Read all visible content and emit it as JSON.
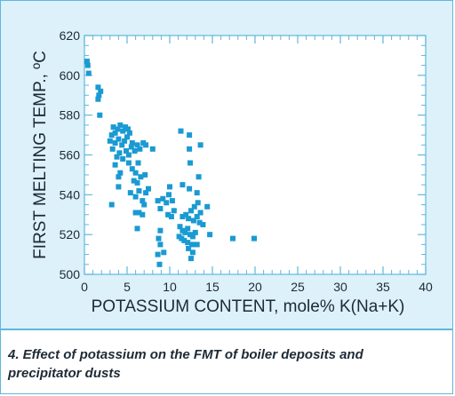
{
  "chart_data": {
    "type": "scatter",
    "title": "",
    "xlabel": "POTASSIUM CONTENT, mole% K(Na+K)",
    "ylabel": "FIRST MELTING TEMP., ºC",
    "xlim": [
      0,
      40
    ],
    "ylim": [
      500,
      620
    ],
    "x_ticks": [
      0,
      5,
      10,
      15,
      20,
      25,
      30,
      35,
      40
    ],
    "y_ticks": [
      500,
      520,
      540,
      560,
      580,
      600,
      620
    ],
    "grid": false,
    "marker_color": "#1a9ad2",
    "series": [
      {
        "points": [
          [
            0.3,
            607
          ],
          [
            0.4,
            605
          ],
          [
            0.5,
            601
          ],
          [
            1.6,
            594
          ],
          [
            1.7,
            590
          ],
          [
            1.9,
            592
          ],
          [
            1.6,
            588
          ],
          [
            1.8,
            580
          ],
          [
            3.0,
            567
          ],
          [
            3.2,
            570
          ],
          [
            3.4,
            574
          ],
          [
            3.6,
            571
          ],
          [
            3.9,
            573
          ],
          [
            4.2,
            575
          ],
          [
            4.5,
            572
          ],
          [
            4.8,
            574
          ],
          [
            5.1,
            573
          ],
          [
            3.3,
            563
          ],
          [
            3.6,
            566
          ],
          [
            4.0,
            568
          ],
          [
            4.4,
            565
          ],
          [
            4.7,
            567
          ],
          [
            5.0,
            569
          ],
          [
            5.3,
            571
          ],
          [
            5.6,
            566
          ],
          [
            3.8,
            559
          ],
          [
            4.1,
            561
          ],
          [
            4.5,
            558
          ],
          [
            4.9,
            562
          ],
          [
            5.2,
            560
          ],
          [
            5.5,
            564
          ],
          [
            5.9,
            562
          ],
          [
            6.2,
            565
          ],
          [
            6.5,
            563
          ],
          [
            6.9,
            566
          ],
          [
            7.2,
            565
          ],
          [
            8.0,
            563
          ],
          [
            3.6,
            555
          ],
          [
            4.0,
            549
          ],
          [
            4.2,
            551
          ],
          [
            5.2,
            556
          ],
          [
            5.6,
            553
          ],
          [
            6.0,
            551
          ],
          [
            6.3,
            556
          ],
          [
            5.8,
            547
          ],
          [
            6.2,
            546
          ],
          [
            6.6,
            549
          ],
          [
            7.1,
            550
          ],
          [
            5.4,
            541
          ],
          [
            6.0,
            539
          ],
          [
            6.4,
            542
          ],
          [
            6.8,
            537
          ],
          [
            7.2,
            541
          ],
          [
            7.5,
            543
          ],
          [
            4.0,
            544
          ],
          [
            3.2,
            535
          ],
          [
            6.0,
            531
          ],
          [
            6.4,
            531
          ],
          [
            6.8,
            530
          ],
          [
            7.0,
            535
          ],
          [
            6.2,
            523
          ],
          [
            8.6,
            537
          ],
          [
            8.9,
            533
          ],
          [
            9.2,
            538
          ],
          [
            9.6,
            536
          ],
          [
            9.9,
            540
          ],
          [
            10.3,
            537
          ],
          [
            10.0,
            544
          ],
          [
            9.8,
            530
          ],
          [
            10.2,
            529
          ],
          [
            10.5,
            532
          ],
          [
            8.9,
            522
          ],
          [
            8.7,
            518
          ],
          [
            8.9,
            515
          ],
          [
            8.6,
            510
          ],
          [
            8.8,
            505
          ],
          [
            9.3,
            511
          ],
          [
            11.3,
            572
          ],
          [
            12.3,
            570
          ],
          [
            12.3,
            563
          ],
          [
            13.6,
            565
          ],
          [
            12.4,
            556
          ],
          [
            13.4,
            549
          ],
          [
            12.3,
            543
          ],
          [
            11.5,
            545
          ],
          [
            13.2,
            541
          ],
          [
            13.3,
            536
          ],
          [
            12.9,
            534
          ],
          [
            13.6,
            531
          ],
          [
            14.4,
            534
          ],
          [
            11.5,
            529
          ],
          [
            11.9,
            530
          ],
          [
            12.2,
            528
          ],
          [
            12.5,
            532
          ],
          [
            12.8,
            527
          ],
          [
            13.2,
            529
          ],
          [
            13.5,
            526
          ],
          [
            13.9,
            525
          ],
          [
            11.2,
            524
          ],
          [
            11.5,
            522
          ],
          [
            11.8,
            521
          ],
          [
            12.1,
            523
          ],
          [
            12.4,
            520
          ],
          [
            12.7,
            519
          ],
          [
            13.0,
            521
          ],
          [
            11.1,
            519
          ],
          [
            11.4,
            518
          ],
          [
            11.7,
            517
          ],
          [
            12.1,
            516
          ],
          [
            12.6,
            515
          ],
          [
            13.2,
            515
          ],
          [
            12.2,
            513
          ],
          [
            12.7,
            511
          ],
          [
            12.5,
            508
          ],
          [
            14.7,
            520
          ],
          [
            17.4,
            518
          ],
          [
            19.9,
            518
          ]
        ]
      }
    ]
  },
  "caption": {
    "text": "4. Effect of potassium on the FMT of boiler deposits and precipitator dusts"
  }
}
